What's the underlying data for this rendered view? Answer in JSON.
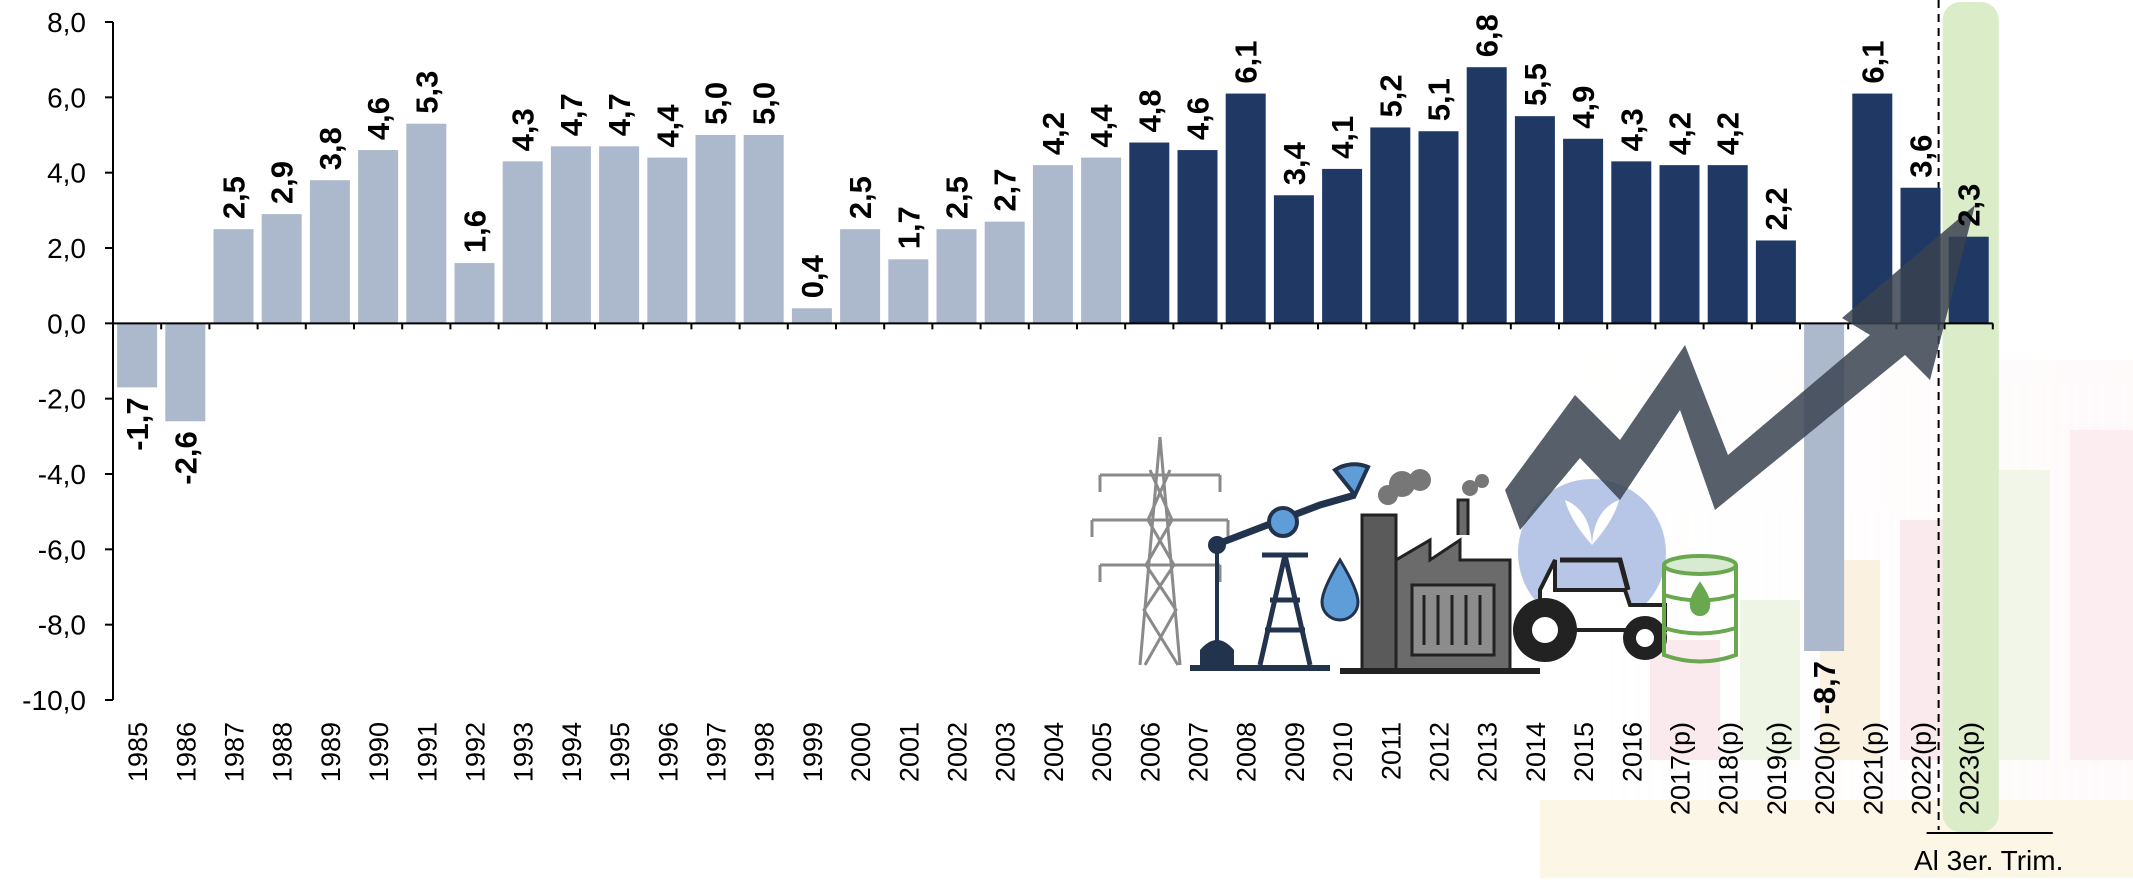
{
  "chart_data": {
    "type": "bar",
    "title": "",
    "xlabel": "",
    "ylabel": "",
    "ylim": [
      -10,
      8
    ],
    "yticks": [
      "8,0",
      "6,0",
      "4,0",
      "2,0",
      "0,0",
      "-2,0",
      "-4,0",
      "-6,0",
      "-8,0",
      "-10,0"
    ],
    "categories": [
      "1985",
      "1986",
      "1987",
      "1988",
      "1989",
      "1990",
      "1991",
      "1992",
      "1993",
      "1994",
      "1995",
      "1996",
      "1997",
      "1998",
      "1999",
      "2000",
      "2001",
      "2002",
      "2003",
      "2004",
      "2005",
      "2006",
      "2007",
      "2008",
      "2009",
      "2010",
      "2011",
      "2012",
      "2013",
      "2014",
      "2015",
      "2016",
      "2017(p)",
      "2018(p)",
      "2019(p)",
      "2020(p)",
      "2021(p)",
      "2022(p)",
      "2023(p)"
    ],
    "values": [
      -1.7,
      -2.6,
      2.5,
      2.9,
      3.8,
      4.6,
      5.3,
      1.6,
      4.3,
      4.7,
      4.7,
      4.4,
      5.0,
      5.0,
      0.4,
      2.5,
      1.7,
      2.5,
      2.7,
      4.2,
      4.4,
      4.8,
      4.6,
      6.1,
      3.4,
      4.1,
      5.2,
      5.1,
      6.8,
      5.5,
      4.9,
      4.3,
      4.2,
      4.2,
      2.2,
      -8.7,
      6.1,
      3.6,
      2.3
    ],
    "value_labels": [
      "-1,7",
      "-2,6",
      "2,5",
      "2,9",
      "3,8",
      "4,6",
      "5,3",
      "1,6",
      "4,3",
      "4,7",
      "4,7",
      "4,4",
      "5,0",
      "5,0",
      "0,4",
      "2,5",
      "1,7",
      "2,5",
      "2,7",
      "4,2",
      "4,4",
      "4,8",
      "4,6",
      "6,1",
      "3,4",
      "4,1",
      "5,2",
      "5,1",
      "6,8",
      "5,5",
      "4,9",
      "4,3",
      "4,2",
      "4,2",
      "2,2",
      "-8,7",
      "6,1",
      "3,6",
      "2,3"
    ],
    "bar_color_groups": [
      "light",
      "light",
      "light",
      "light",
      "light",
      "light",
      "light",
      "light",
      "light",
      "light",
      "light",
      "light",
      "light",
      "light",
      "light",
      "light",
      "light",
      "light",
      "light",
      "light",
      "light",
      "dark",
      "dark",
      "dark",
      "dark",
      "dark",
      "dark",
      "dark",
      "dark",
      "dark",
      "dark",
      "dark",
      "dark",
      "dark",
      "dark",
      "light",
      "dark",
      "dark",
      "dark"
    ],
    "colors": {
      "light": "#acb9cc",
      "dark": "#1f3864",
      "highlight_band": "#dbecc9",
      "arrow": "#3a4350"
    },
    "grid": false,
    "legend": "none",
    "highlight_last_category": true,
    "footnote": "Al 3er. Trim."
  }
}
